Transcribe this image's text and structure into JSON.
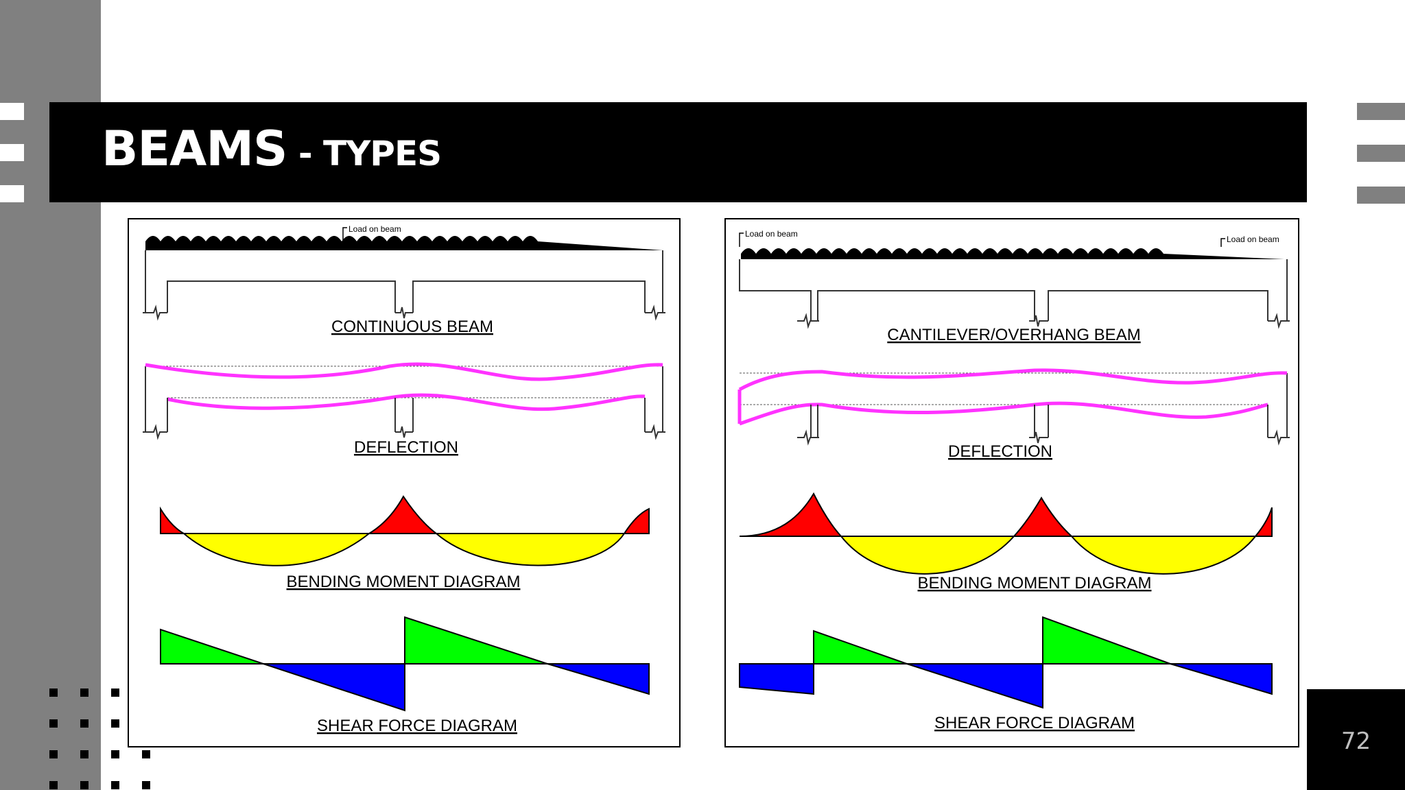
{
  "slide": {
    "title_main": "BEAMS",
    "title_sub": " - TYPES",
    "page_number": "72"
  },
  "left_diagram": {
    "load_label": "Load on beam",
    "beam_label": "CONTINUOUS BEAM",
    "deflection_label": "DEFLECTION",
    "bmd_label": "BENDING MOMENT DIAGRAM",
    "sfd_label": "SHEAR FORCE DIAGRAM"
  },
  "right_diagram": {
    "load_label_left": "Load on beam",
    "load_label_right": "Load on beam",
    "beam_label": "CANTILEVER/OVERHANG  BEAM",
    "deflection_label": "DEFLECTION",
    "bmd_label": "BENDING MOMENT DIAGRAM",
    "sfd_label": "SHEAR FORCE DIAGRAM"
  },
  "colors": {
    "deflection": "#ff33ff",
    "negative_moment": "#ff0000",
    "positive_moment": "#ffff00",
    "positive_shear": "#00ff00",
    "negative_shear": "#0000ff"
  }
}
